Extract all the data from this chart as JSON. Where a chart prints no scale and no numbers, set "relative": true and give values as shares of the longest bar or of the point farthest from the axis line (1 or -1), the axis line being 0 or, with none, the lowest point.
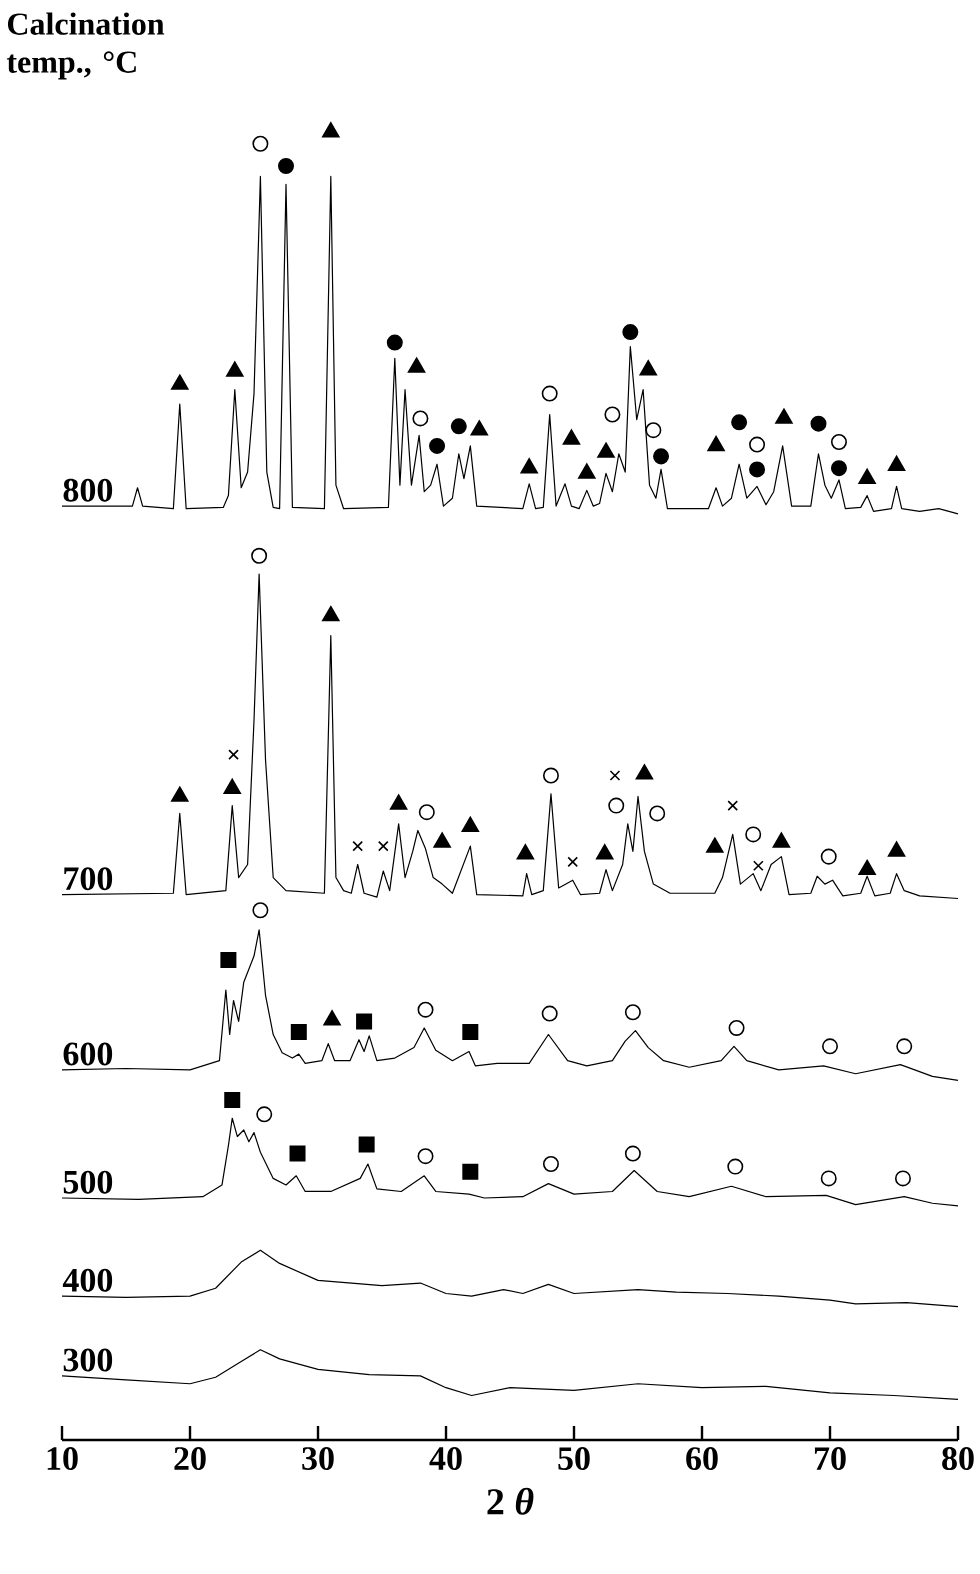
{
  "chart_data": {
    "type": "line",
    "relative": true,
    "title": "Calcination temp., °C",
    "xlabel": "2 *θ*",
    "xlim": [
      10,
      80
    ],
    "xticks": [
      10,
      20,
      30,
      40,
      50,
      60,
      70,
      80
    ],
    "series": [
      {
        "name": "800",
        "color": "#000000",
        "x": [
          10,
          15.5,
          15.9,
          16.3,
          18.7,
          19.2,
          19.7,
          22.6,
          23.0,
          23.5,
          24.0,
          24.5,
          25.0,
          25.5,
          26.0,
          26.5,
          27.0,
          27.5,
          28.0,
          30.5,
          31.0,
          31.4,
          32.0,
          35.5,
          36.0,
          36.4,
          36.8,
          37.3,
          37.9,
          38.3,
          38.8,
          39.3,
          39.8,
          40.5,
          41.0,
          41.4,
          41.9,
          42.4,
          46.0,
          46.5,
          47.0,
          47.6,
          48.1,
          48.6,
          49.3,
          49.8,
          50.4,
          51.0,
          51.5,
          52.0,
          52.5,
          53.0,
          53.5,
          54.0,
          54.4,
          54.9,
          55.4,
          55.9,
          56.4,
          56.8,
          57.3,
          60.5,
          61.1,
          61.6,
          62.3,
          62.9,
          63.5,
          64.3,
          65.0,
          65.6,
          66.3,
          67.0,
          68.5,
          69.1,
          69.6,
          70.1,
          70.7,
          71.2,
          72.4,
          72.9,
          73.4,
          74.8,
          75.2,
          75.6,
          77.0,
          78.5,
          80
        ],
        "values": [
          0.714,
          0.714,
          0.728,
          0.714,
          0.712,
          0.792,
          0.712,
          0.713,
          0.722,
          0.803,
          0.728,
          0.74,
          0.8,
          0.966,
          0.74,
          0.713,
          0.712,
          0.96,
          0.713,
          0.712,
          0.966,
          0.73,
          0.712,
          0.713,
          0.827,
          0.73,
          0.803,
          0.73,
          0.768,
          0.725,
          0.73,
          0.746,
          0.714,
          0.72,
          0.754,
          0.735,
          0.76,
          0.714,
          0.712,
          0.731,
          0.712,
          0.713,
          0.784,
          0.714,
          0.731,
          0.714,
          0.712,
          0.726,
          0.714,
          0.716,
          0.739,
          0.725,
          0.754,
          0.74,
          0.836,
          0.78,
          0.803,
          0.73,
          0.72,
          0.742,
          0.712,
          0.712,
          0.728,
          0.714,
          0.72,
          0.746,
          0.72,
          0.729,
          0.715,
          0.725,
          0.76,
          0.714,
          0.714,
          0.754,
          0.73,
          0.72,
          0.734,
          0.712,
          0.713,
          0.722,
          0.71,
          0.712,
          0.729,
          0.712,
          0.71,
          0.712,
          0.708
        ]
      },
      {
        "name": "700",
        "color": "#000000",
        "x": [
          10,
          18.7,
          19.2,
          19.7,
          22.8,
          23.3,
          23.8,
          24.5,
          25.0,
          25.4,
          25.9,
          26.5,
          27.5,
          30.5,
          31.0,
          31.4,
          32.0,
          32.6,
          33.1,
          33.6,
          34.6,
          35.1,
          35.6,
          36.3,
          36.8,
          37.4,
          37.8,
          38.4,
          39.0,
          39.7,
          40.5,
          41.9,
          42.4,
          46.0,
          46.3,
          46.7,
          47.6,
          48.2,
          48.8,
          49.9,
          50.5,
          52.0,
          52.5,
          53.0,
          53.8,
          54.2,
          54.6,
          55.0,
          55.5,
          56.2,
          57.5,
          61.0,
          61.6,
          62.4,
          63.0,
          64.0,
          64.6,
          65.4,
          66.2,
          66.8,
          68.5,
          69.0,
          69.6,
          70.2,
          71,
          72.4,
          72.9,
          73.5,
          74.7,
          75.2,
          75.8,
          77,
          80
        ],
        "values": [
          0.417,
          0.418,
          0.479,
          0.417,
          0.42,
          0.485,
          0.43,
          0.44,
          0.55,
          0.662,
          0.52,
          0.43,
          0.42,
          0.418,
          0.615,
          0.43,
          0.42,
          0.418,
          0.44,
          0.418,
          0.415,
          0.435,
          0.42,
          0.471,
          0.43,
          0.45,
          0.466,
          0.452,
          0.43,
          0.425,
          0.418,
          0.454,
          0.417,
          0.416,
          0.433,
          0.417,
          0.42,
          0.494,
          0.422,
          0.428,
          0.417,
          0.418,
          0.436,
          0.42,
          0.44,
          0.471,
          0.45,
          0.492,
          0.45,
          0.425,
          0.418,
          0.418,
          0.43,
          0.463,
          0.425,
          0.433,
          0.42,
          0.44,
          0.446,
          0.417,
          0.418,
          0.431,
          0.425,
          0.428,
          0.416,
          0.418,
          0.431,
          0.416,
          0.418,
          0.433,
          0.42,
          0.416,
          0.414
        ]
      },
      {
        "name": "600",
        "color": "#000000",
        "x": [
          10,
          15,
          20,
          22.3,
          22.8,
          23.1,
          23.4,
          23.8,
          24.2,
          24.6,
          25.0,
          25.4,
          25.9,
          26.5,
          27.2,
          28.0,
          28.5,
          29.0,
          30.3,
          30.8,
          31.3,
          32.5,
          33.2,
          33.6,
          34.0,
          34.6,
          36,
          37.5,
          38.3,
          39.2,
          40.5,
          41.8,
          42.3,
          44,
          46.5,
          48.0,
          49.5,
          51,
          53,
          54.0,
          54.8,
          55.8,
          57,
          59,
          61.5,
          62.5,
          63.5,
          66,
          69.5,
          72,
          75.5,
          78,
          80
        ],
        "values": [
          0.283,
          0.284,
          0.283,
          0.29,
          0.344,
          0.31,
          0.336,
          0.32,
          0.35,
          0.36,
          0.37,
          0.39,
          0.34,
          0.31,
          0.296,
          0.292,
          0.295,
          0.288,
          0.29,
          0.303,
          0.29,
          0.29,
          0.306,
          0.297,
          0.309,
          0.29,
          0.292,
          0.3,
          0.315,
          0.298,
          0.29,
          0.297,
          0.286,
          0.288,
          0.288,
          0.31,
          0.29,
          0.286,
          0.29,
          0.305,
          0.313,
          0.3,
          0.29,
          0.285,
          0.29,
          0.301,
          0.29,
          0.283,
          0.286,
          0.28,
          0.287,
          0.278,
          0.275
        ]
      },
      {
        "name": "500",
        "color": "#000000",
        "x": [
          10,
          16,
          21,
          22.5,
          23.0,
          23.3,
          23.7,
          24.2,
          24.6,
          25.0,
          25.5,
          26.5,
          27.5,
          28.3,
          29.0,
          31,
          33.3,
          33.9,
          34.6,
          36.5,
          38.3,
          39.2,
          41.8,
          43,
          46,
          48.0,
          50,
          53,
          54.7,
          56.5,
          59,
          62.3,
          65,
          69.7,
          72,
          75.8,
          78,
          80
        ],
        "values": [
          0.185,
          0.184,
          0.186,
          0.195,
          0.225,
          0.246,
          0.232,
          0.237,
          0.228,
          0.235,
          0.22,
          0.2,
          0.195,
          0.202,
          0.19,
          0.19,
          0.2,
          0.211,
          0.192,
          0.19,
          0.202,
          0.19,
          0.188,
          0.185,
          0.186,
          0.196,
          0.188,
          0.19,
          0.206,
          0.19,
          0.186,
          0.194,
          0.186,
          0.187,
          0.18,
          0.186,
          0.181,
          0.179
        ]
      },
      {
        "name": "400",
        "color": "#000000",
        "x": [
          10,
          15,
          20,
          22,
          24,
          25.5,
          27,
          30,
          35,
          38,
          40,
          42,
          44.5,
          46,
          48,
          50,
          55,
          58,
          62,
          66,
          70,
          72,
          76,
          80
        ],
        "values": [
          0.11,
          0.109,
          0.11,
          0.116,
          0.136,
          0.145,
          0.135,
          0.122,
          0.118,
          0.12,
          0.112,
          0.11,
          0.115,
          0.112,
          0.119,
          0.112,
          0.115,
          0.113,
          0.112,
          0.11,
          0.107,
          0.104,
          0.105,
          0.102
        ]
      },
      {
        "name": "300",
        "color": "#000000",
        "x": [
          10,
          15,
          20,
          22,
          24,
          25.5,
          27,
          30,
          34,
          38,
          40,
          42,
          45,
          50,
          55,
          60,
          65,
          70,
          75,
          80
        ],
        "values": [
          0.049,
          0.046,
          0.043,
          0.048,
          0.06,
          0.069,
          0.062,
          0.054,
          0.05,
          0.049,
          0.04,
          0.034,
          0.04,
          0.038,
          0.043,
          0.04,
          0.041,
          0.036,
          0.034,
          0.031
        ]
      },
      {
        "type": "scatter",
        "marker": "triangle",
        "color": "#000000",
        "x": [
          19.2,
          23.5,
          31.0,
          37.7,
          42.6,
          46.5,
          49.8,
          51.0,
          52.5,
          55.8,
          61.1,
          66.4,
          72.9,
          75.2,
          19.2,
          23.3,
          31.0,
          36.3,
          39.7,
          41.9,
          46.2,
          52.4,
          55.5,
          61.0,
          66.2,
          72.9,
          75.2,
          31.1
        ],
        "values": [
          0.807,
          0.817,
          1,
          0.82,
          0.772,
          0.743,
          0.765,
          0.739,
          0.755,
          0.818,
          0.76,
          0.781,
          0.735,
          0.745,
          0.492,
          0.498,
          0.63,
          0.486,
          0.457,
          0.469,
          0.448,
          0.448,
          0.509,
          0.453,
          0.457,
          0.436,
          0.45,
          0.321
        ]
      },
      {
        "type": "scatter",
        "marker": "circle",
        "color": "#000000",
        "x": [
          27.5,
          36.0,
          39.3,
          41.0,
          54.4,
          56.8,
          62.9,
          64.3,
          69.1,
          70.7
        ],
        "values": [
          0.974,
          0.839,
          0.76,
          0.775,
          0.847,
          0.752,
          0.778,
          0.742,
          0.777,
          0.743
        ]
      },
      {
        "type": "scatter",
        "marker": "circle",
        "color": "#ffffff",
        "x": [
          25.5,
          38.0,
          48.1,
          53.0,
          56.2,
          64.3,
          70.7,
          25.4,
          38.5,
          48.2,
          53.3,
          56.5,
          64.0,
          69.9,
          25.5,
          38.4,
          48.1,
          54.6,
          62.7,
          70.0,
          75.8,
          25.8,
          38.4,
          48.2,
          54.6,
          62.6,
          69.9,
          75.7
        ],
        "values": [
          0.991,
          0.781,
          0.8,
          0.784,
          0.772,
          0.761,
          0.763,
          0.676,
          0.48,
          0.508,
          0.485,
          0.479,
          0.463,
          0.446,
          0.405,
          0.329,
          0.326,
          0.327,
          0.315,
          0.301,
          0.301,
          0.249,
          0.217,
          0.211,
          0.219,
          0.209,
          0.2,
          0.2
        ]
      },
      {
        "type": "scatter",
        "marker": "cross",
        "color": "#000000",
        "x": [
          23.4,
          33.1,
          35.1,
          49.9,
          53.2,
          62.4,
          64.4
        ],
        "values": [
          0.524,
          0.454,
          0.454,
          0.442,
          0.508,
          0.485,
          0.439
        ]
      },
      {
        "type": "scatter",
        "marker": "square",
        "color": "#000000",
        "x": [
          23.0,
          28.5,
          33.6,
          41.9,
          23.3,
          28.4,
          33.8,
          41.9
        ],
        "values": [
          0.367,
          0.312,
          0.32,
          0.312,
          0.26,
          0.219,
          0.226,
          0.205
        ]
      }
    ]
  }
}
